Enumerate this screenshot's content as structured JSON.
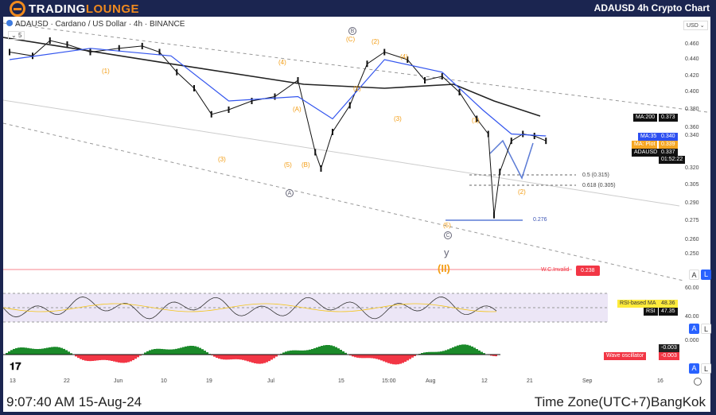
{
  "header": {
    "logo": "TradingLounge",
    "logo_part1": "TRADING",
    "logo_part2": "LOUNGE",
    "title": "ADAUSD 4h Crypto Chart"
  },
  "chart_info": {
    "symbol_line": "ADAUSD · Cardano / US Dollar · 4h · BINANCE",
    "indicator_count": "5",
    "currency": "USD"
  },
  "footer": {
    "time": "9:07:40 AM 15-Aug-24",
    "timezone": "Time Zone(UTC+7)BangKok"
  },
  "colors": {
    "header": "#1b2550",
    "accent": "#f08a1e",
    "ma200": "#222222",
    "ma35": "#3355ee",
    "ma_plot": "#f5a623",
    "invalid": "#f23645",
    "projection": "#5b7bd5"
  },
  "chart_data": {
    "type": "line",
    "title": "ADAUSD · Cardano / US Dollar · 4h · BINANCE",
    "xlabel": "",
    "ylabel": "USD",
    "x_ticks": [
      "13",
      "22",
      "Jun",
      "10",
      "19",
      "Jul",
      "15",
      "15:00",
      "Aug",
      "12",
      "21",
      "Sep",
      "16"
    ],
    "y_ticks": [
      "0.460",
      "0.440",
      "0.420",
      "0.400",
      "0.380",
      "0.360",
      "0.340",
      "0.320",
      "0.305",
      "0.290",
      "0.275",
      "0.260",
      "0.250"
    ],
    "series": [
      {
        "name": "ADAUSD",
        "color": "#111111",
        "x": [
          "May 13",
          "May 17",
          "May 20",
          "May 23",
          "May 27",
          "Jun 1",
          "Jun 5",
          "Jun 8",
          "Jun 11",
          "Jun 14",
          "Jun 17",
          "Jun 20",
          "Jun 24",
          "Jun 28",
          "Jul 2",
          "Jul 5",
          "Jul 6",
          "Jul 8",
          "Jul 11",
          "Jul 14",
          "Jul 17",
          "Jul 21",
          "Jul 24",
          "Jul 27",
          "Jul 30",
          "Aug 2",
          "Aug 4",
          "Aug 5",
          "Aug 6",
          "Aug 8",
          "Aug 10",
          "Aug 12",
          "Aug 14"
        ],
        "y": [
          0.45,
          0.445,
          0.465,
          0.46,
          0.45,
          0.455,
          0.458,
          0.45,
          0.425,
          0.405,
          0.375,
          0.38,
          0.39,
          0.395,
          0.415,
          0.33,
          0.32,
          0.35,
          0.385,
          0.435,
          0.45,
          0.44,
          0.415,
          0.42,
          0.4,
          0.37,
          0.345,
          0.28,
          0.317,
          0.337,
          0.345,
          0.34,
          0.337
        ]
      },
      {
        "name": "MA:200",
        "color": "#222222",
        "x": [
          "May 11",
          "Jun 10",
          "Jul 3",
          "Jul 17",
          "Jul 29",
          "Aug 5",
          "Aug 13"
        ],
        "y": [
          0.47,
          0.435,
          0.41,
          0.405,
          0.41,
          0.39,
          0.373
        ]
      },
      {
        "name": "MA:35",
        "color": "#3355ee",
        "x": [
          "May 13",
          "May 27",
          "Jun 10",
          "Jun 20",
          "Jul 2",
          "Jul 8",
          "Jul 17",
          "Jul 27",
          "Aug 3",
          "Aug 8",
          "Aug 14"
        ],
        "y": [
          0.44,
          0.455,
          0.445,
          0.39,
          0.395,
          0.37,
          0.44,
          0.425,
          0.38,
          0.345,
          0.34
        ]
      }
    ],
    "price_labels": [
      {
        "label": "MA:200",
        "value": "0.373"
      },
      {
        "label": "MA:35",
        "value": "0.340"
      },
      {
        "label": "MA: Plot",
        "value": "0.339"
      },
      {
        "label": "ADAUSD",
        "value": "0.337",
        "countdown": "01:52:22"
      }
    ],
    "fib_levels": [
      {
        "label": "0.5 (0.315)",
        "value": 0.315
      },
      {
        "label": "0.618 (0.305)",
        "value": 0.305
      }
    ],
    "low_level": {
      "label": "0.276",
      "value": 0.276
    },
    "invalidation": {
      "label": "W.C.Invalid",
      "value": "0.238"
    },
    "wave_labels": [
      "(1)",
      "(3)",
      "(5)",
      "(A)",
      "(B)",
      "(C)",
      "(2)",
      "(4)",
      "(1)",
      "(3)",
      "(4)",
      "(5)",
      "(1)",
      "(2)",
      "A",
      "B",
      "C",
      "y",
      "(II)"
    ],
    "rsi": {
      "ticks": [
        "60.00",
        "40.00"
      ],
      "rsi_ma_label": "RSI-based MA",
      "rsi_ma": "48.36",
      "rsi_label": "RSI",
      "rsi_value": "47.35"
    },
    "wave_oscillator": {
      "tick": "0.000",
      "value_a": "-0.003",
      "label": "Wave oscillator",
      "value_b": "-0.003"
    }
  },
  "buttons": {
    "auto": "A",
    "log": "L"
  }
}
